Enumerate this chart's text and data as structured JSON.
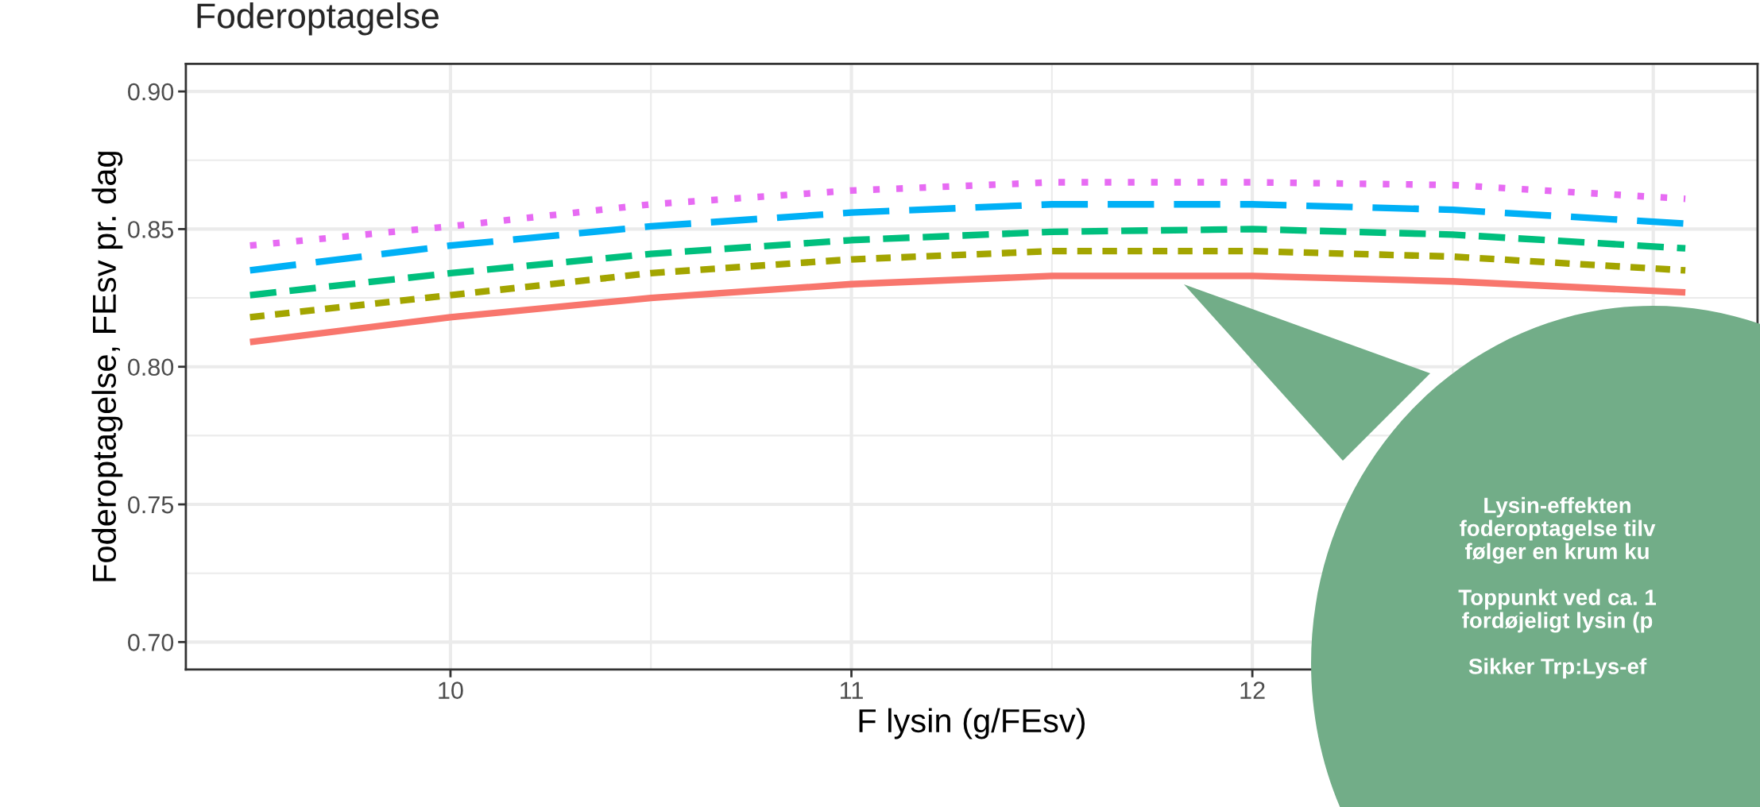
{
  "chart_data": {
    "type": "line",
    "title": "Foderoptagelse",
    "xlabel": "F lysin (g/FEsv)",
    "ylabel": "Foderoptagelse, FEsv pr. dag",
    "x": [
      9.5,
      10,
      10.5,
      11,
      11.5,
      12,
      12.5,
      13.08
    ],
    "series": [
      {
        "color": "#f8766d",
        "line_style": "solid",
        "values": [
          0.809,
          0.818,
          0.825,
          0.83,
          0.833,
          0.833,
          0.831,
          0.827
        ]
      },
      {
        "color": "#a3a500",
        "line_style": "shortdash",
        "values": [
          0.818,
          0.826,
          0.834,
          0.839,
          0.842,
          0.842,
          0.84,
          0.835
        ]
      },
      {
        "color": "#00bf7d",
        "line_style": "dashed",
        "values": [
          0.826,
          0.834,
          0.841,
          0.846,
          0.849,
          0.85,
          0.848,
          0.843
        ]
      },
      {
        "color": "#00b0f6",
        "line_style": "longdash",
        "values": [
          0.835,
          0.844,
          0.851,
          0.856,
          0.859,
          0.859,
          0.857,
          0.852
        ]
      },
      {
        "color": "#e76bf3",
        "line_style": "dotted",
        "values": [
          0.844,
          0.851,
          0.859,
          0.864,
          0.867,
          0.867,
          0.866,
          0.861
        ]
      }
    ],
    "xlim": [
      9.34,
      13.26
    ],
    "xticks": [
      10,
      11,
      12,
      {
        "value": 13,
        "label": null
      }
    ],
    "ylim": [
      0.69,
      0.91
    ],
    "yticks": [
      {
        "value": 0.7,
        "label": "0.70"
      },
      0.75,
      {
        "value": 0.8,
        "label": "0.80"
      },
      0.85,
      {
        "value": 0.9,
        "label": "0.90"
      }
    ],
    "grid": true,
    "legend": false,
    "annotations": [
      "Lysin-effekten\nfoderoptagelse tilv\nfølger en krum ku\n\nToppunkt ved ca. 1\nfordøjeligt lysin (p\n\nSikker Trp:Lys-ef"
    ]
  }
}
